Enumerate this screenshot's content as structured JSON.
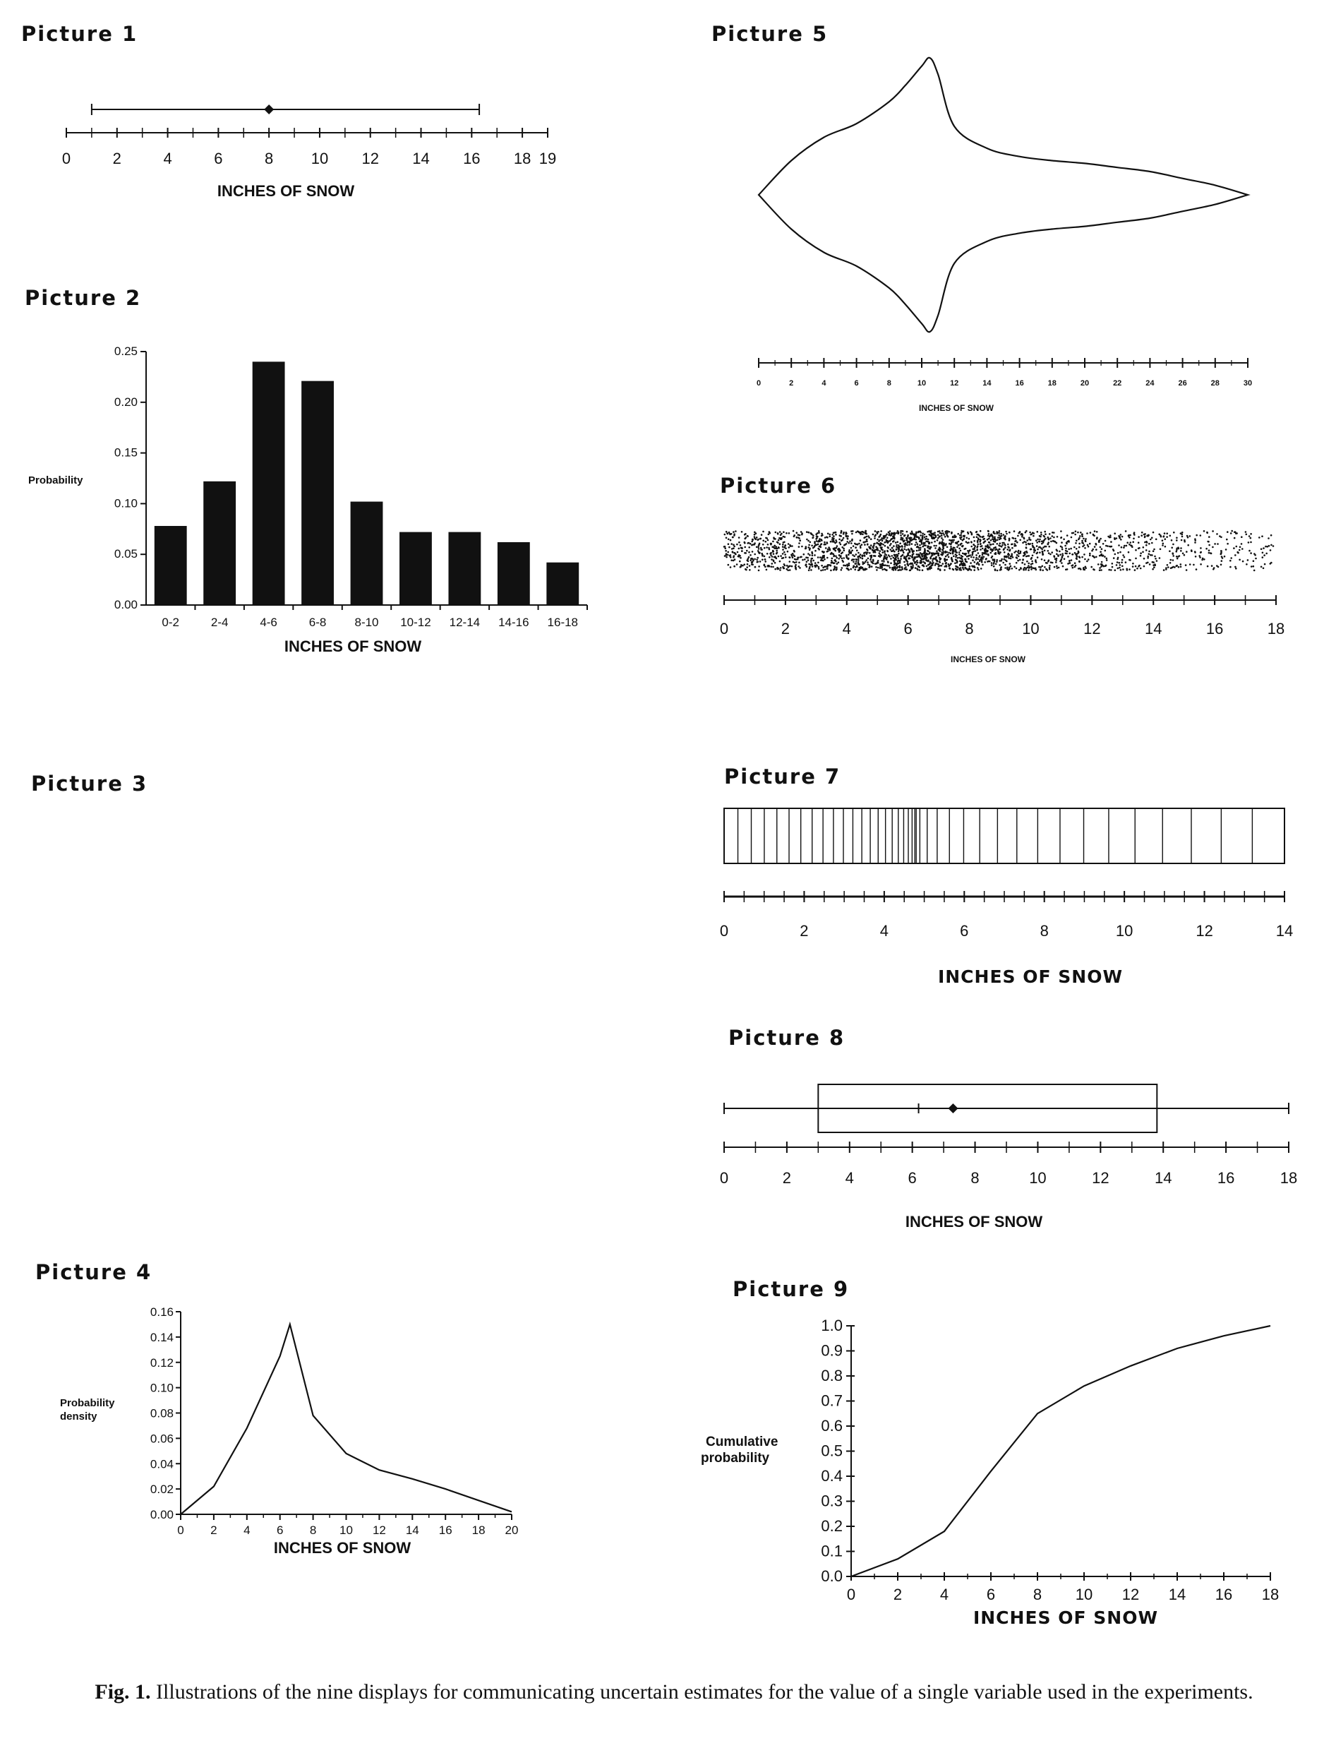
{
  "caption": {
    "label": "Fig. 1.",
    "text": "Illustrations of the nine displays for communicating uncertain estimates for the value of a single variable used in the experiments."
  },
  "pictures": [
    {
      "id": 1,
      "title": "Picture 1"
    },
    {
      "id": 2,
      "title": "Picture 2"
    },
    {
      "id": 3,
      "title": "Picture 3"
    },
    {
      "id": 4,
      "title": "Picture 4"
    },
    {
      "id": 5,
      "title": "Picture 5"
    },
    {
      "id": 6,
      "title": "Picture 6"
    },
    {
      "id": 7,
      "title": "Picture 7"
    },
    {
      "id": 8,
      "title": "Picture 8"
    },
    {
      "id": 9,
      "title": "Picture 9"
    }
  ],
  "chart_data": [
    {
      "picture": 1,
      "type": "error-bar",
      "xlabel": "INCHES OF SNOW",
      "xlim": [
        0,
        19
      ],
      "xticks": [
        "0",
        "2",
        "4",
        "6",
        "8",
        "10",
        "12",
        "14",
        "16",
        "18",
        "19"
      ],
      "xtick_values": [
        0,
        2,
        4,
        6,
        8,
        10,
        12,
        14,
        16,
        18,
        19
      ],
      "point": 8,
      "interval": [
        1,
        16.3
      ]
    },
    {
      "picture": 2,
      "type": "bar",
      "xlabel": "INCHES OF SNOW",
      "ylabel": "Probability",
      "ylim": [
        0,
        0.25
      ],
      "yticks": [
        "0.00",
        "0.05",
        "0.10",
        "0.15",
        "0.20",
        "0.25"
      ],
      "ytick_values": [
        0,
        0.05,
        0.1,
        0.15,
        0.2,
        0.25
      ],
      "categories": [
        "0-2",
        "2-4",
        "4-6",
        "6-8",
        "8-10",
        "10-12",
        "12-14",
        "14-16",
        "16-18"
      ],
      "values": [
        0.078,
        0.122,
        0.24,
        0.221,
        0.102,
        0.072,
        0.072,
        0.062,
        0.042
      ]
    },
    {
      "picture": 4,
      "type": "line",
      "xlabel": "INCHES OF SNOW",
      "ylabel": "Probability density",
      "xlim": [
        0,
        20
      ],
      "ylim": [
        0,
        0.16
      ],
      "xticks": [
        "0",
        "2",
        "4",
        "6",
        "8",
        "10",
        "12",
        "14",
        "16",
        "18",
        "20"
      ],
      "xtick_values": [
        0,
        2,
        4,
        6,
        8,
        10,
        12,
        14,
        16,
        18,
        20
      ],
      "yticks": [
        "0.00",
        "0.02",
        "0.04",
        "0.06",
        "0.08",
        "0.10",
        "0.12",
        "0.14",
        "0.16"
      ],
      "ytick_values": [
        0,
        0.02,
        0.04,
        0.06,
        0.08,
        0.1,
        0.12,
        0.14,
        0.16
      ],
      "x": [
        0,
        2,
        4,
        6,
        6.6,
        8,
        10,
        12,
        14,
        16,
        18,
        20
      ],
      "y": [
        0,
        0.022,
        0.068,
        0.125,
        0.15,
        0.078,
        0.048,
        0.035,
        0.028,
        0.02,
        0.011,
        0.002
      ]
    },
    {
      "picture": 5,
      "type": "violin",
      "xlabel": "INCHES OF SNOW",
      "xlim": [
        0,
        30
      ],
      "xticks": [
        "0",
        "2",
        "4",
        "6",
        "8",
        "10",
        "12",
        "14",
        "16",
        "18",
        "20",
        "22",
        "24",
        "26",
        "28",
        "30"
      ],
      "xtick_values": [
        0,
        2,
        4,
        6,
        8,
        10,
        12,
        14,
        16,
        18,
        20,
        22,
        24,
        26,
        28,
        30
      ],
      "profile_x": [
        0,
        2,
        4,
        6,
        8,
        9,
        10,
        10.5,
        11,
        12,
        14,
        16,
        18,
        20,
        22,
        24,
        26,
        28,
        30
      ],
      "profile_halfwidth": [
        0,
        0.25,
        0.42,
        0.52,
        0.68,
        0.8,
        0.94,
        1.0,
        0.88,
        0.5,
        0.34,
        0.28,
        0.25,
        0.23,
        0.2,
        0.17,
        0.12,
        0.07,
        0
      ],
      "xrange": [
        0,
        30
      ]
    },
    {
      "picture": 6,
      "type": "dot-density",
      "xlabel": "INCHES OF SNOW",
      "xlim": [
        0,
        18
      ],
      "xticks": [
        "0",
        "2",
        "4",
        "6",
        "8",
        "10",
        "12",
        "14",
        "16",
        "18"
      ],
      "xtick_values": [
        0,
        2,
        4,
        6,
        8,
        10,
        12,
        14,
        16,
        18
      ],
      "peak": 6.2
    },
    {
      "picture": 7,
      "type": "interval-lines",
      "xlabel": "INCHES OF SNOW",
      "xlim": [
        0,
        14
      ],
      "xticks": [
        "0",
        "2",
        "4",
        "6",
        "8",
        "10",
        "12",
        "14"
      ],
      "xtick_values": [
        0,
        2,
        4,
        6,
        8,
        10,
        12,
        14
      ],
      "peak": 4.8
    },
    {
      "picture": 8,
      "type": "box",
      "xlabel": "INCHES OF SNOW",
      "xlim": [
        0,
        18
      ],
      "xticks": [
        "0",
        "2",
        "4",
        "6",
        "8",
        "10",
        "12",
        "14",
        "16",
        "18"
      ],
      "xtick_values": [
        0,
        2,
        4,
        6,
        8,
        10,
        12,
        14,
        16,
        18
      ],
      "min": 0,
      "q1": 3,
      "median": 6.2,
      "mean": 7.3,
      "q3": 13.8,
      "max": 18
    },
    {
      "picture": 9,
      "type": "line",
      "xlabel": "INCHES OF SNOW",
      "ylabel": "Cumulative probability",
      "xlim": [
        0,
        18
      ],
      "ylim": [
        0,
        1
      ],
      "xticks": [
        "0",
        "2",
        "4",
        "6",
        "8",
        "10",
        "12",
        "14",
        "16",
        "18"
      ],
      "xtick_values": [
        0,
        2,
        4,
        6,
        8,
        10,
        12,
        14,
        16,
        18
      ],
      "yticks": [
        "0.0",
        "0.1",
        "0.2",
        "0.3",
        "0.4",
        "0.5",
        "0.6",
        "0.7",
        "0.8",
        "0.9",
        "1.0"
      ],
      "ytick_values": [
        0,
        0.1,
        0.2,
        0.3,
        0.4,
        0.5,
        0.6,
        0.7,
        0.8,
        0.9,
        1.0
      ],
      "x": [
        0,
        2,
        4,
        6,
        8,
        10,
        12,
        14,
        16,
        18
      ],
      "y": [
        0,
        0.07,
        0.18,
        0.42,
        0.65,
        0.76,
        0.84,
        0.91,
        0.96,
        1.0
      ]
    }
  ]
}
